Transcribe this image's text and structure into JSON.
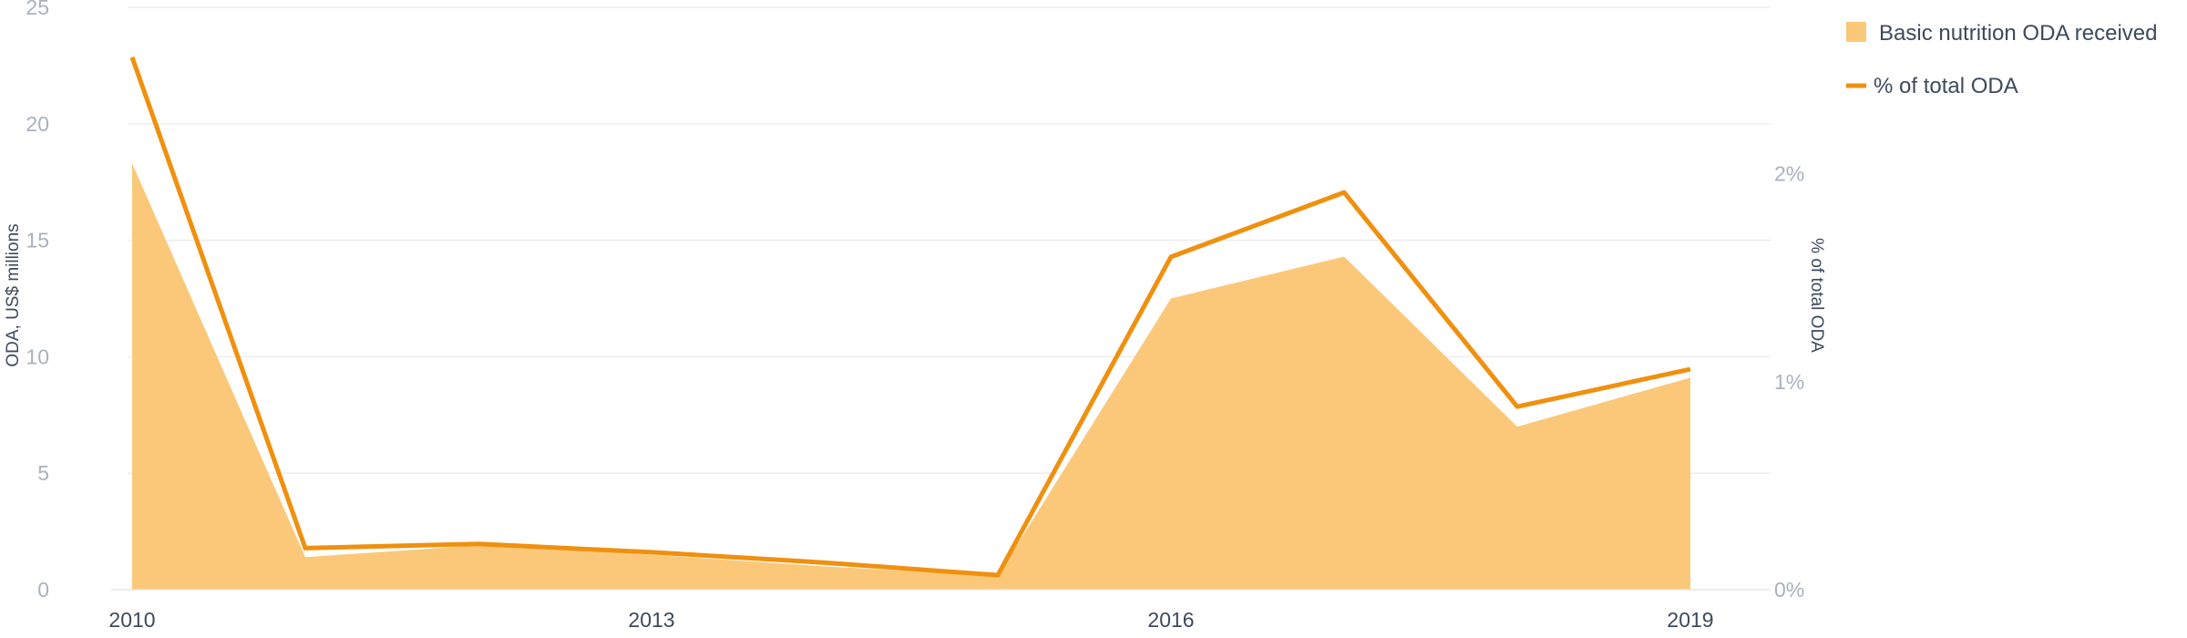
{
  "chart_data": {
    "type": "area",
    "x": [
      2010,
      2011,
      2012,
      2013,
      2014,
      2015,
      2016,
      2017,
      2018,
      2019
    ],
    "xticks": [
      "2010",
      "2013",
      "2016",
      "2019"
    ],
    "ylabel": "ODA, US$ millions",
    "y2label": "% of total ODA",
    "ylim": [
      0,
      25
    ],
    "y2lim": [
      0,
      2.8
    ],
    "yticks": [
      "0",
      "5",
      "10",
      "15",
      "20",
      "25"
    ],
    "y2ticks": [
      "0%",
      "1%",
      "2%"
    ],
    "grid": true,
    "legend_position": "top-right",
    "series": [
      {
        "name": "Basic nutrition ODA received",
        "type": "area",
        "axis": "left",
        "color": "#fbc87a",
        "values": [
          18.3,
          1.4,
          1.9,
          1.5,
          1.0,
          0.6,
          12.5,
          14.3,
          7.0,
          9.1
        ]
      },
      {
        "name": "% of total ODA",
        "type": "line",
        "axis": "right",
        "color": "#f0900f",
        "values": [
          2.56,
          0.2,
          0.22,
          0.18,
          0.13,
          0.07,
          1.6,
          1.91,
          0.88,
          1.06
        ]
      }
    ]
  }
}
